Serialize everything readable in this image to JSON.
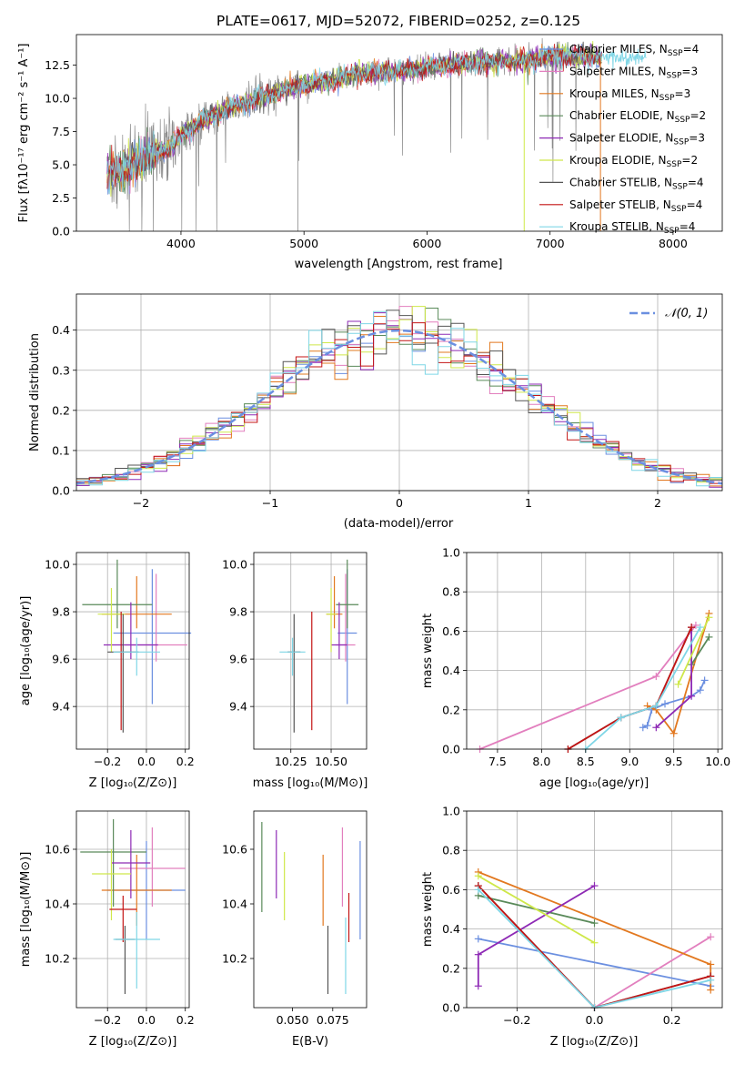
{
  "figure": {
    "title": "PLATE=0617, MJD=52072, FIBERID=0252, z=0.125"
  },
  "colors": {
    "Chabrier MILES": "#6b8fe0",
    "Salpeter MILES": "#e27fbe",
    "Kroupa MILES": "#e2781f",
    "Chabrier ELODIE": "#5a8a5a",
    "Salpeter ELODIE": "#8e2ab5",
    "Kroupa ELODIE": "#cfe84a",
    "Chabrier STELIB": "#555555",
    "Salpeter STELIB": "#c41414",
    "Kroupa STELIB": "#7fd6e6",
    "data": "#8a8a8a",
    "gaussian": "#6b8fe0"
  },
  "chart_data": [
    {
      "id": "spectrum",
      "type": "line",
      "title": "PLATE=0617, MJD=52072, FIBERID=0252, z=0.125",
      "xlabel": "wavelength [Angstrom, rest frame]",
      "ylabel": "Flux [fλ10⁻¹⁷ erg cm⁻² s⁻¹ A⁻¹]",
      "xlim": [
        3150,
        8400
      ],
      "ylim": [
        0,
        14.8
      ],
      "xticks": [
        "4000",
        "5000",
        "6000",
        "7000",
        "8000"
      ],
      "yticks": [
        "0.0",
        "2.5",
        "5.0",
        "7.5",
        "10.0",
        "12.5"
      ],
      "grid": false,
      "legend_position": "right",
      "continuum": {
        "x": [
          3400,
          3500,
          3600,
          3700,
          3800,
          3900,
          4000,
          4100,
          4200,
          4300,
          4400,
          4500,
          4600,
          4700,
          4800,
          4900,
          5000,
          5200,
          5400,
          5600,
          5800,
          6000,
          6200,
          6400,
          6600,
          6800,
          7000,
          7200,
          7400
        ],
        "y": [
          4.4,
          4.5,
          5.0,
          5.5,
          6.0,
          6.2,
          7.2,
          7.8,
          8.4,
          8.8,
          9.4,
          9.6,
          9.9,
          10.3,
          10.5,
          10.8,
          11.0,
          11.3,
          11.8,
          12.0,
          12.1,
          12.3,
          12.6,
          12.7,
          12.8,
          12.9,
          13.1,
          13.2,
          13.1
        ]
      },
      "legend": [
        {
          "name": "Chabrier MILES",
          "n_ssp": "4"
        },
        {
          "name": "Salpeter MILES",
          "n_ssp": "3"
        },
        {
          "name": "Kroupa MILES",
          "n_ssp": "3"
        },
        {
          "name": "Chabrier ELODIE",
          "n_ssp": "2"
        },
        {
          "name": "Salpeter ELODIE",
          "n_ssp": "3"
        },
        {
          "name": "Kroupa ELODIE",
          "n_ssp": "2"
        },
        {
          "name": "Chabrier STELIB",
          "n_ssp": "4"
        },
        {
          "name": "Salpeter STELIB",
          "n_ssp": "4"
        },
        {
          "name": "Kroupa STELIB",
          "n_ssp": "4"
        }
      ],
      "legend_ssp_prefix": "N",
      "legend_ssp_sub": "SSP"
    },
    {
      "id": "residuals",
      "type": "line",
      "xlabel": "(data-model)/error",
      "ylabel": "Normed distribution",
      "xlim": [
        -2.5,
        2.5
      ],
      "ylim": [
        0,
        0.49
      ],
      "xticks": [
        "−2",
        "−1",
        "0",
        "1",
        "2"
      ],
      "xtick_values": [
        -2,
        -1,
        0,
        1,
        2
      ],
      "yticks": [
        "0.0",
        "0.1",
        "0.2",
        "0.3",
        "0.4"
      ],
      "grid": true,
      "legend": "𝒩(0, 1)",
      "legend_position": "top-right",
      "bin_width": 0.1
    },
    {
      "id": "z-age",
      "type": "scatter",
      "xlabel": "Z [log₁₀(Z/Z⊙)]",
      "ylabel": "age  [log₁₀(age/yr)]",
      "xlim": [
        -0.36,
        0.22
      ],
      "ylim": [
        9.22,
        10.05
      ],
      "xticks": [
        "−0.2",
        "0.0",
        "0.2"
      ],
      "xtick_values": [
        -0.2,
        0.0,
        0.2
      ],
      "yticks": [
        "9.4",
        "9.6",
        "9.8",
        "10.0"
      ],
      "ytick_values": [
        9.4,
        9.6,
        9.8,
        10.0
      ],
      "grid": true
    },
    {
      "id": "mass-age",
      "type": "scatter",
      "xlabel": "mass [log₁₀(M/M⊙)]",
      "ylabel": "",
      "xlim": [
        10.02,
        10.72
      ],
      "ylim": [
        9.22,
        10.05
      ],
      "xticks": [
        "10.25",
        "10.50"
      ],
      "xtick_values": [
        10.25,
        10.5
      ],
      "yticks": [
        "9.4",
        "9.6",
        "9.8",
        "10.0"
      ],
      "ytick_values": [
        9.4,
        9.6,
        9.8,
        10.0
      ],
      "grid": true
    },
    {
      "id": "weight-age",
      "type": "line",
      "xlabel": "age  [log₁₀(age/yr)]",
      "ylabel": "mass weight",
      "xlim": [
        7.15,
        10.05
      ],
      "ylim": [
        0,
        1.0
      ],
      "xticks": [
        "7.5",
        "8.0",
        "8.5",
        "9.0",
        "9.5",
        "10.0"
      ],
      "xtick_values": [
        7.5,
        8.0,
        8.5,
        9.0,
        9.5,
        10.0
      ],
      "yticks": [
        "0.0",
        "0.2",
        "0.4",
        "0.6",
        "0.8",
        "1.0"
      ],
      "ytick_values": [
        0,
        0.2,
        0.4,
        0.6,
        0.8,
        1.0
      ],
      "grid": true,
      "series": [
        {
          "key": "Chabrier MILES",
          "x": [
            9.15,
            9.2,
            9.25,
            9.4,
            9.7,
            9.8,
            9.85
          ],
          "y": [
            0.11,
            0.12,
            0.2,
            0.23,
            0.27,
            0.3,
            0.35
          ]
        },
        {
          "key": "Salpeter MILES",
          "x": [
            7.3,
            9.3,
            9.75
          ],
          "y": [
            0.0,
            0.37,
            0.63
          ]
        },
        {
          "key": "Kroupa MILES",
          "x": [
            9.2,
            9.3,
            9.5,
            9.9
          ],
          "y": [
            0.22,
            0.2,
            0.08,
            0.69
          ]
        },
        {
          "key": "Chabrier ELODIE",
          "x": [
            9.7,
            9.9
          ],
          "y": [
            0.43,
            0.57
          ]
        },
        {
          "key": "Salpeter ELODIE",
          "x": [
            9.3,
            9.7,
            9.7
          ],
          "y": [
            0.11,
            0.27,
            0.62
          ]
        },
        {
          "key": "Kroupa ELODIE",
          "x": [
            9.55,
            9.9
          ],
          "y": [
            0.33,
            0.67
          ]
        },
        {
          "key": "Chabrier STELIB",
          "x": [
            8.3,
            8.9,
            9.3,
            9.7
          ],
          "y": [
            0.0,
            0.16,
            0.22,
            0.62
          ]
        },
        {
          "key": "Salpeter STELIB",
          "x": [
            8.3,
            8.9,
            9.3,
            9.7
          ],
          "y": [
            0.0,
            0.16,
            0.22,
            0.62
          ]
        },
        {
          "key": "Kroupa STELIB",
          "x": [
            8.5,
            8.9,
            9.3,
            9.8
          ],
          "y": [
            0.0,
            0.16,
            0.22,
            0.62
          ]
        }
      ]
    },
    {
      "id": "z-mass",
      "type": "scatter",
      "xlabel": "Z [log₁₀(Z/Z⊙)]",
      "ylabel": "mass [log₁₀(M/M⊙)]",
      "xlim": [
        -0.36,
        0.22
      ],
      "ylim": [
        10.02,
        10.74
      ],
      "xticks": [
        "−0.2",
        "0.0",
        "0.2"
      ],
      "xtick_values": [
        -0.2,
        0.0,
        0.2
      ],
      "yticks": [
        "10.2",
        "10.4",
        "10.6"
      ],
      "ytick_values": [
        10.2,
        10.4,
        10.6
      ],
      "grid": true
    },
    {
      "id": "ebv-mass",
      "type": "scatter",
      "xlabel": "E(B-V)",
      "ylabel": "",
      "xlim": [
        0.026,
        0.096
      ],
      "ylim": [
        10.02,
        10.74
      ],
      "xticks": [
        "0.050",
        "0.075"
      ],
      "xtick_values": [
        0.05,
        0.075
      ],
      "yticks": [
        "10.2",
        "10.4",
        "10.6"
      ],
      "ytick_values": [
        10.2,
        10.4,
        10.6
      ],
      "grid": false
    },
    {
      "id": "weight-z",
      "type": "line",
      "xlabel": "Z [log₁₀(Z/Z⊙)]",
      "ylabel": "mass weight",
      "xlim": [
        -0.33,
        0.33
      ],
      "ylim": [
        0,
        1.0
      ],
      "xticks": [
        "−0.2",
        "0.0",
        "0.2"
      ],
      "xtick_values": [
        -0.2,
        0.0,
        0.2
      ],
      "yticks": [
        "0.0",
        "0.2",
        "0.4",
        "0.6",
        "0.8",
        "1.0"
      ],
      "ytick_values": [
        0,
        0.2,
        0.4,
        0.6,
        0.8,
        1.0
      ],
      "grid": true,
      "series": [
        {
          "key": "Chabrier MILES",
          "x": [
            -0.3,
            0.3
          ],
          "y": [
            0.35,
            0.11
          ]
        },
        {
          "key": "Salpeter MILES",
          "x": [
            0.0,
            0.3
          ],
          "y": [
            0.0,
            0.36
          ]
        },
        {
          "key": "Kroupa MILES",
          "x": [
            -0.3,
            0.3,
            0.3
          ],
          "y": [
            0.69,
            0.22,
            0.09
          ]
        },
        {
          "key": "Chabrier ELODIE",
          "x": [
            -0.3,
            0.0
          ],
          "y": [
            0.57,
            0.43
          ]
        },
        {
          "key": "Salpeter ELODIE",
          "x": [
            -0.3,
            -0.3,
            0.0
          ],
          "y": [
            0.11,
            0.27,
            0.62
          ]
        },
        {
          "key": "Kroupa ELODIE",
          "x": [
            -0.3,
            0.0
          ],
          "y": [
            0.67,
            0.33
          ]
        },
        {
          "key": "Chabrier STELIB",
          "x": [
            -0.3,
            0.0,
            0.3
          ],
          "y": [
            0.62,
            0.0,
            0.16
          ]
        },
        {
          "key": "Salpeter STELIB",
          "x": [
            -0.3,
            0.0,
            0.3
          ],
          "y": [
            0.62,
            0.0,
            0.16
          ]
        },
        {
          "key": "Kroupa STELIB",
          "x": [
            -0.3,
            0.0,
            0.3
          ],
          "y": [
            0.6,
            0.0,
            0.14
          ]
        }
      ]
    }
  ],
  "errorbars": {
    "z-age": [
      {
        "key": "Chabrier MILES",
        "x": 0.03,
        "xerr": 0.2,
        "y": 9.71,
        "yerr": [
          0.3,
          0.27
        ]
      },
      {
        "key": "Salpeter MILES",
        "x": 0.05,
        "xerr": 0.16,
        "y": 9.66,
        "yerr": [
          0.07,
          0.3
        ]
      },
      {
        "key": "Kroupa MILES",
        "x": -0.05,
        "xerr": 0.18,
        "y": 9.79,
        "yerr": [
          0.06,
          0.16
        ]
      },
      {
        "key": "Chabrier ELODIE",
        "x": -0.15,
        "xerr": 0.18,
        "y": 9.83,
        "yerr": [
          0.1,
          0.19
        ]
      },
      {
        "key": "Salpeter ELODIE",
        "x": -0.08,
        "xerr": 0.14,
        "y": 9.66,
        "yerr": [
          0.06,
          0.18
        ]
      },
      {
        "key": "Kroupa ELODIE",
        "x": -0.18,
        "xerr": 0.07,
        "y": 9.79,
        "yerr": [
          0.16,
          0.11
        ]
      },
      {
        "key": "Chabrier STELIB",
        "x": -0.12,
        "xerr": 0.08,
        "y": 9.63,
        "yerr": [
          0.34,
          0.16
        ]
      },
      {
        "key": "Salpeter STELIB",
        "x": -0.13,
        "xerr": 0.0,
        "y": 9.63,
        "yerr": [
          0.33,
          0.17
        ]
      },
      {
        "key": "Kroupa STELIB",
        "x": -0.05,
        "xerr": 0.12,
        "y": 9.63,
        "yerr": [
          0.1,
          0.06
        ]
      }
    ],
    "mass-age": [
      {
        "key": "Chabrier MILES",
        "x": 10.6,
        "xerr": 0.06,
        "y": 9.71,
        "yerr": [
          0.3,
          0.27
        ]
      },
      {
        "key": "Salpeter MILES",
        "x": 10.59,
        "xerr": 0.06,
        "y": 9.66,
        "yerr": [
          0.07,
          0.3
        ]
      },
      {
        "key": "Kroupa MILES",
        "x": 10.52,
        "xerr": 0.05,
        "y": 9.79,
        "yerr": [
          0.06,
          0.16
        ]
      },
      {
        "key": "Chabrier ELODIE",
        "x": 10.6,
        "xerr": 0.07,
        "y": 9.83,
        "yerr": [
          0.1,
          0.19
        ]
      },
      {
        "key": "Salpeter ELODIE",
        "x": 10.55,
        "xerr": 0.05,
        "y": 9.66,
        "yerr": [
          0.06,
          0.18
        ]
      },
      {
        "key": "Kroupa ELODIE",
        "x": 10.5,
        "xerr": 0.03,
        "y": 9.79,
        "yerr": [
          0.16,
          0.11
        ]
      },
      {
        "key": "Chabrier STELIB",
        "x": 10.27,
        "xerr": 0.04,
        "y": 9.63,
        "yerr": [
          0.34,
          0.16
        ]
      },
      {
        "key": "Salpeter STELIB",
        "x": 10.38,
        "xerr": 0.0,
        "y": 9.63,
        "yerr": [
          0.33,
          0.17
        ]
      },
      {
        "key": "Kroupa STELIB",
        "x": 10.26,
        "xerr": 0.08,
        "y": 9.63,
        "yerr": [
          0.1,
          0.06
        ]
      }
    ],
    "z-mass": [
      {
        "key": "Chabrier MILES",
        "x": 0.0,
        "xerr": 0.2,
        "y": 10.45,
        "yerr": [
          0.18,
          0.18
        ]
      },
      {
        "key": "Salpeter MILES",
        "x": 0.03,
        "xerr": 0.17,
        "y": 10.53,
        "yerr": [
          0.14,
          0.15
        ]
      },
      {
        "key": "Kroupa MILES",
        "x": -0.05,
        "xerr": 0.18,
        "y": 10.45,
        "yerr": [
          0.13,
          0.13
        ]
      },
      {
        "key": "Chabrier ELODIE",
        "x": -0.17,
        "xerr": 0.17,
        "y": 10.59,
        "yerr": [
          0.2,
          0.12
        ]
      },
      {
        "key": "Salpeter ELODIE",
        "x": -0.08,
        "xerr": 0.1,
        "y": 10.55,
        "yerr": [
          0.13,
          0.12
        ]
      },
      {
        "key": "Kroupa ELODIE",
        "x": -0.18,
        "xerr": 0.1,
        "y": 10.51,
        "yerr": [
          0.17,
          0.09
        ]
      },
      {
        "key": "Chabrier STELIB",
        "x": -0.11,
        "xerr": 0.05,
        "y": 10.27,
        "yerr": [
          0.2,
          0.05
        ]
      },
      {
        "key": "Salpeter STELIB",
        "x": -0.12,
        "xerr": 0.07,
        "y": 10.38,
        "yerr": [
          0.12,
          0.05
        ]
      },
      {
        "key": "Kroupa STELIB",
        "x": -0.05,
        "xerr": 0.12,
        "y": 10.27,
        "yerr": [
          0.18,
          0.1
        ]
      }
    ],
    "ebv-mass": [
      {
        "key": "Chabrier MILES",
        "x": 0.092,
        "y": 10.45,
        "yerr": [
          0.18,
          0.18
        ]
      },
      {
        "key": "Salpeter MILES",
        "x": 0.081,
        "y": 10.53,
        "yerr": [
          0.14,
          0.15
        ]
      },
      {
        "key": "Kroupa MILES",
        "x": 0.069,
        "y": 10.45,
        "yerr": [
          0.13,
          0.13
        ]
      },
      {
        "key": "Chabrier ELODIE",
        "x": 0.031,
        "y": 10.54,
        "yerr": [
          0.17,
          0.16
        ]
      },
      {
        "key": "Salpeter ELODIE",
        "x": 0.04,
        "y": 10.55,
        "yerr": [
          0.13,
          0.12
        ]
      },
      {
        "key": "Kroupa ELODIE",
        "x": 0.045,
        "y": 10.47,
        "yerr": [
          0.13,
          0.12
        ]
      },
      {
        "key": "Chabrier STELIB",
        "x": 0.072,
        "y": 10.2,
        "yerr": [
          0.13,
          0.12
        ]
      },
      {
        "key": "Salpeter STELIB",
        "x": 0.085,
        "y": 10.38,
        "yerr": [
          0.12,
          0.06
        ]
      },
      {
        "key": "Kroupa STELIB",
        "x": 0.083,
        "y": 10.2,
        "yerr": [
          0.13,
          0.15
        ]
      }
    ]
  }
}
